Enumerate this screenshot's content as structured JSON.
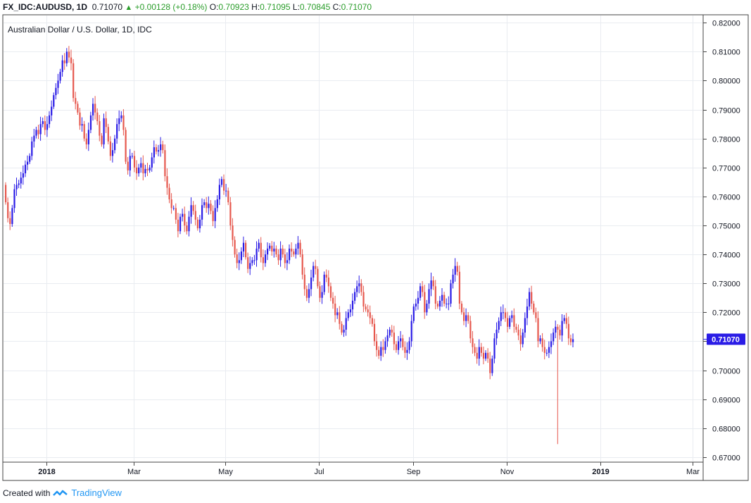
{
  "header": {
    "symbol": "FX_IDC:AUDUSD, 1D",
    "last": "0.71070",
    "change_arrow": "▲",
    "change": "+0.00128 (+0.18%)",
    "o_label": "O:",
    "o": "0.70923",
    "h_label": "H:",
    "h": "0.71095",
    "l_label": "L:",
    "l": "0.70845",
    "c_label": "C:",
    "c": "0.71070"
  },
  "footer": {
    "created_with": "Created with",
    "brand": "TradingView"
  },
  "chart_data": {
    "type": "candlestick",
    "title": "Australian Dollar / U.S. Dollar, 1D, IDC",
    "up_color": "#2a1ce6",
    "down_color": "#e6584e",
    "grid": true,
    "ylim": [
      0.6685,
      0.8225
    ],
    "y_ticks": [
      "0.67000",
      "0.68000",
      "0.69000",
      "0.70000",
      "0.71000",
      "0.72000",
      "0.73000",
      "0.74000",
      "0.75000",
      "0.76000",
      "0.77000",
      "0.78000",
      "0.79000",
      "0.80000",
      "0.81000",
      "0.82000"
    ],
    "x_ticks": [
      {
        "label": "2018",
        "bold": true,
        "bar": 0
      },
      {
        "label": "Mar",
        "bold": false,
        "bar": 40
      },
      {
        "label": "May",
        "bold": false,
        "bar": 82
      },
      {
        "label": "Jul",
        "bold": false,
        "bar": 125
      },
      {
        "label": "Sep",
        "bold": false,
        "bar": 168
      },
      {
        "label": "Nov",
        "bold": false,
        "bar": 211
      },
      {
        "label": "2019",
        "bold": true,
        "bar": 254
      },
      {
        "label": "Mar",
        "bold": false,
        "bar": 296
      }
    ],
    "bars_before_first_tick": 19,
    "last_price_label": "0.71070",
    "closes": [
      0.758,
      0.7525,
      0.7505,
      0.756,
      0.7625,
      0.764,
      0.7645,
      0.7665,
      0.768,
      0.771,
      0.772,
      0.774,
      0.779,
      0.781,
      0.783,
      0.7815,
      0.785,
      0.786,
      0.783,
      0.785,
      0.788,
      0.791,
      0.795,
      0.7975,
      0.8,
      0.803,
      0.807,
      0.806,
      0.81,
      0.808,
      0.806,
      0.794,
      0.792,
      0.789,
      0.7845,
      0.785,
      0.78,
      0.778,
      0.783,
      0.788,
      0.792,
      0.789,
      0.786,
      0.781,
      0.778,
      0.787,
      0.784,
      0.779,
      0.774,
      0.776,
      0.78,
      0.785,
      0.787,
      0.788,
      0.783,
      0.772,
      0.769,
      0.774,
      0.774,
      0.77,
      0.768,
      0.77,
      0.7715,
      0.768,
      0.7695,
      0.769,
      0.77,
      0.7735,
      0.777,
      0.7755,
      0.776,
      0.778,
      0.776,
      0.767,
      0.763,
      0.759,
      0.756,
      0.756,
      0.752,
      0.748,
      0.753,
      0.754,
      0.75,
      0.748,
      0.753,
      0.757,
      0.755,
      0.752,
      0.749,
      0.752,
      0.757,
      0.758,
      0.756,
      0.7575,
      0.755,
      0.7515,
      0.756,
      0.759,
      0.764,
      0.766,
      0.762,
      0.762,
      0.758,
      0.75,
      0.745,
      0.74,
      0.737,
      0.738,
      0.741,
      0.744,
      0.739,
      0.735,
      0.737,
      0.738,
      0.738,
      0.742,
      0.744,
      0.739,
      0.737,
      0.74,
      0.742,
      0.743,
      0.741,
      0.742,
      0.74,
      0.738,
      0.742,
      0.74,
      0.737,
      0.738,
      0.742,
      0.741,
      0.74,
      0.742,
      0.744,
      0.74,
      0.733,
      0.728,
      0.725,
      0.728,
      0.732,
      0.736,
      0.735,
      0.729,
      0.725,
      0.727,
      0.733,
      0.732,
      0.729,
      0.725,
      0.723,
      0.719,
      0.72,
      0.716,
      0.713,
      0.714,
      0.718,
      0.72,
      0.721,
      0.724,
      0.727,
      0.729,
      0.73,
      0.727,
      0.722,
      0.721,
      0.72,
      0.718,
      0.716,
      0.71,
      0.707,
      0.705,
      0.708,
      0.707,
      0.71,
      0.712,
      0.714,
      0.713,
      0.709,
      0.707,
      0.71,
      0.711,
      0.708,
      0.706,
      0.707,
      0.71,
      0.717,
      0.722,
      0.723,
      0.725,
      0.729,
      0.727,
      0.72,
      0.723,
      0.728,
      0.731,
      0.729,
      0.723,
      0.722,
      0.724,
      0.726,
      0.723,
      0.723,
      0.723,
      0.73,
      0.733,
      0.736,
      0.734,
      0.723,
      0.72,
      0.717,
      0.719,
      0.717,
      0.711,
      0.708,
      0.706,
      0.704,
      0.708,
      0.706,
      0.704,
      0.706,
      0.704,
      0.699,
      0.704,
      0.711,
      0.714,
      0.717,
      0.72,
      0.72,
      0.718,
      0.715,
      0.718,
      0.719,
      0.715,
      0.714,
      0.712,
      0.709,
      0.713,
      0.718,
      0.722,
      0.727,
      0.723,
      0.72,
      0.718,
      0.71,
      0.711,
      0.708,
      0.706,
      0.706,
      0.708,
      0.71,
      0.713,
      0.715,
      0.714,
      0.712,
      0.717,
      0.718,
      0.716,
      0.711,
      0.7097,
      0.7107
    ]
  }
}
